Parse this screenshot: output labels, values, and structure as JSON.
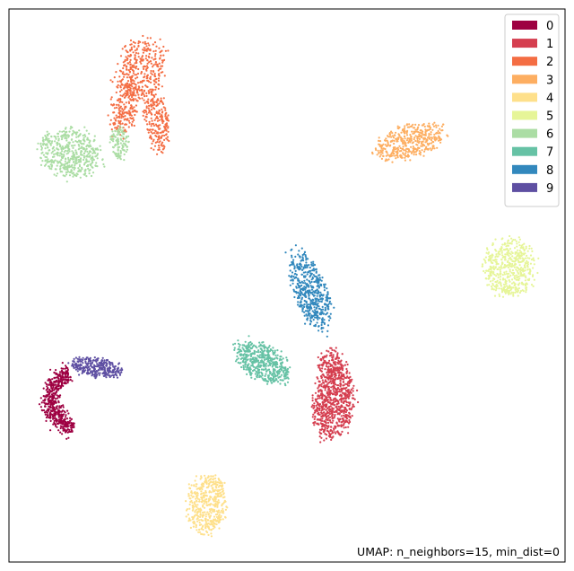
{
  "chart_data": {
    "type": "scatter",
    "title": "",
    "xlabel": "",
    "ylabel": "",
    "xlim": [
      0,
      100
    ],
    "ylim": [
      0,
      100
    ],
    "axes_ticks": false,
    "grid": false,
    "legend_placement": "top-right",
    "annotation": "UMAP: n_neighbors=15, min_dist=0",
    "series": [
      {
        "label": "0",
        "color": "#9e0142",
        "clusters": [
          {
            "shape": "arc",
            "cx": 12.6,
            "cy": 29.4,
            "r": 5.2,
            "a0": 110,
            "a1": 260,
            "thick": 1.6,
            "n": 520
          }
        ]
      },
      {
        "label": "1",
        "color": "#d53e4f",
        "clusters": [
          {
            "shape": "blob",
            "cx": 58.4,
            "cy": 28.9,
            "rx": 3.4,
            "ry": 6.5,
            "rot": -8,
            "n": 720
          },
          {
            "shape": "blob",
            "cx": 57.8,
            "cy": 35.6,
            "rx": 2.3,
            "ry": 2.8,
            "rot": 0,
            "n": 140
          }
        ]
      },
      {
        "label": "2",
        "color": "#f46d43",
        "clusters": [
          {
            "shape": "blob",
            "cx": 23.9,
            "cy": 89.4,
            "rx": 4.2,
            "ry": 5.6,
            "rot": -20,
            "n": 340
          },
          {
            "shape": "blob",
            "cx": 20.8,
            "cy": 82.6,
            "rx": 2.4,
            "ry": 5.2,
            "rot": -10,
            "n": 220
          },
          {
            "shape": "blob",
            "cx": 26.6,
            "cy": 79.6,
            "rx": 2.0,
            "ry": 5.6,
            "rot": 8,
            "n": 220
          }
        ]
      },
      {
        "label": "3",
        "color": "#fdae61",
        "clusters": [
          {
            "shape": "blob",
            "cx": 72.0,
            "cy": 76.0,
            "rx": 6.4,
            "ry": 2.8,
            "rot": 15,
            "n": 430
          }
        ]
      },
      {
        "label": "4",
        "color": "#fee08b",
        "clusters": [
          {
            "shape": "blob",
            "cx": 35.6,
            "cy": 10.6,
            "rx": 3.4,
            "ry": 5.3,
            "rot": -5,
            "n": 460
          }
        ]
      },
      {
        "label": "5",
        "color": "#e6f598",
        "clusters": [
          {
            "shape": "blob",
            "cx": 90.1,
            "cy": 53.3,
            "rx": 4.4,
            "ry": 5.0,
            "rot": 0,
            "n": 520
          }
        ]
      },
      {
        "label": "6",
        "color": "#abdda4",
        "clusters": [
          {
            "shape": "blob",
            "cx": 10.9,
            "cy": 73.9,
            "rx": 5.3,
            "ry": 4.3,
            "rot": -15,
            "n": 520
          },
          {
            "shape": "blob",
            "cx": 19.9,
            "cy": 75.9,
            "rx": 1.6,
            "ry": 2.8,
            "rot": 0,
            "n": 110
          }
        ]
      },
      {
        "label": "7",
        "color": "#66c2a5",
        "clusters": [
          {
            "shape": "blob",
            "cx": 45.6,
            "cy": 36.1,
            "rx": 5.0,
            "ry": 3.0,
            "rot": -30,
            "n": 520
          }
        ]
      },
      {
        "label": "8",
        "color": "#3288bd",
        "clusters": [
          {
            "shape": "blob",
            "cx": 54.1,
            "cy": 49.1,
            "rx": 2.9,
            "ry": 7.2,
            "rot": 20,
            "n": 520
          }
        ]
      },
      {
        "label": "9",
        "color": "#5e4fa2",
        "clusters": [
          {
            "shape": "blob",
            "cx": 15.8,
            "cy": 35.2,
            "rx": 4.5,
            "ry": 1.7,
            "rot": -8,
            "n": 300
          }
        ]
      }
    ]
  }
}
